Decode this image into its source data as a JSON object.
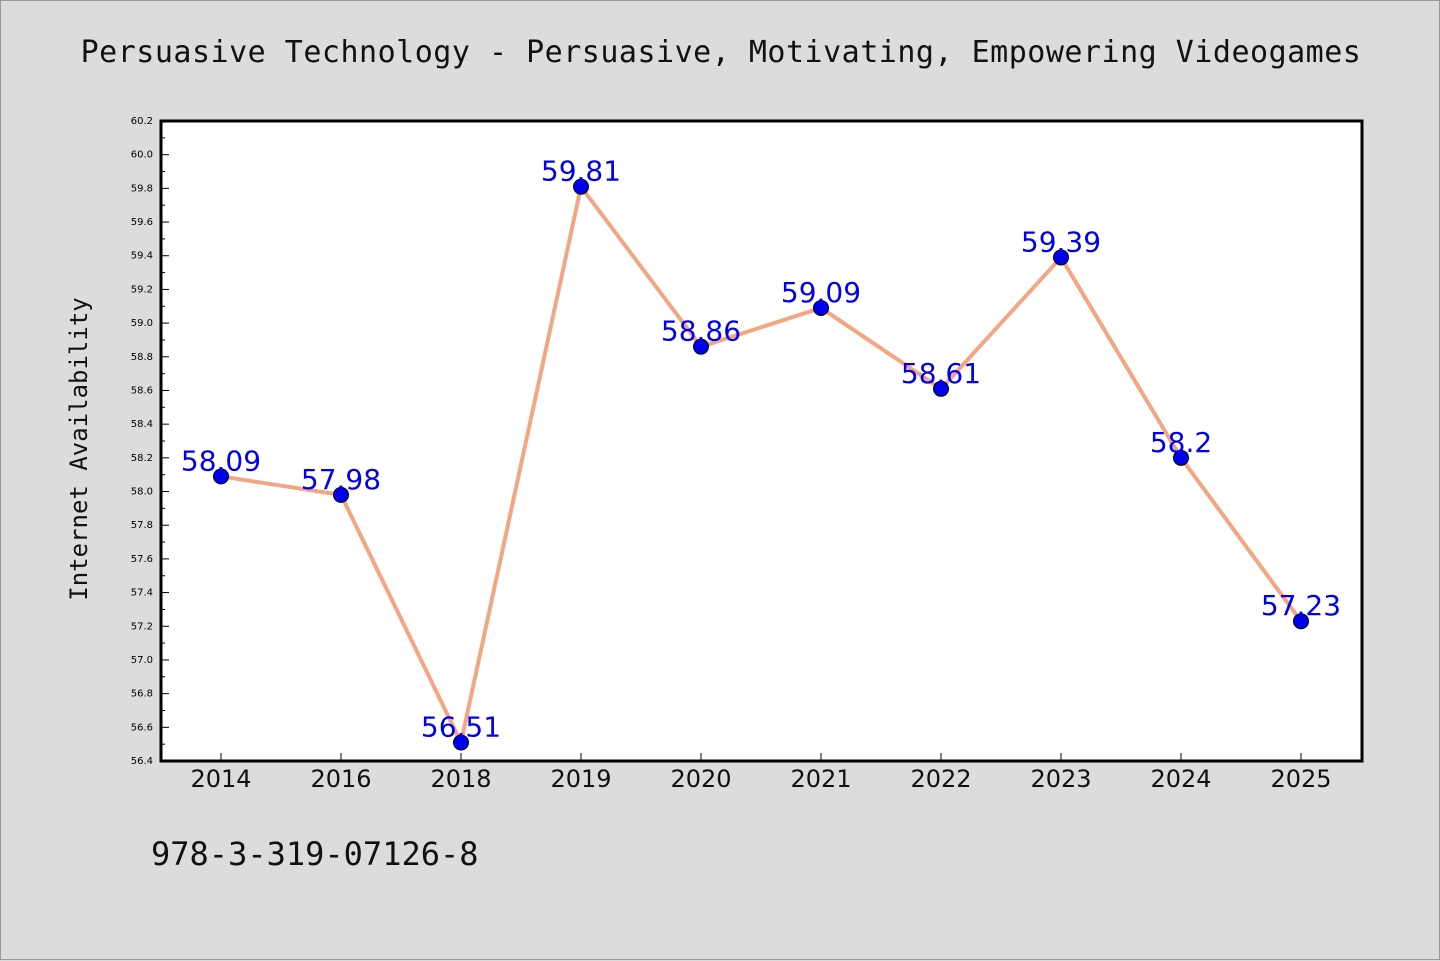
{
  "chart_data": {
    "type": "line",
    "title": "Persuasive Technology - Persuasive, Motivating, Empowering Videogames",
    "xlabel": "",
    "ylabel": "Internet Availability",
    "categories": [
      "2014",
      "2016",
      "2018",
      "2019",
      "2020",
      "2021",
      "2022",
      "2023",
      "2024",
      "2025"
    ],
    "series": [
      {
        "values": [
          58.09,
          57.98,
          56.51,
          59.81,
          58.86,
          59.09,
          58.61,
          59.39,
          58.2,
          57.23
        ],
        "data_labels": [
          "58.09",
          "57.98",
          "56.51",
          "59.81",
          "58.86",
          "59.09",
          "58.61",
          "59.39",
          "58.2",
          "57.23"
        ]
      }
    ],
    "ylim": [
      56.4,
      60.2
    ],
    "yticks": [
      "56.4",
      "56.6",
      "56.8",
      "57.0",
      "57.2",
      "57.4",
      "57.6",
      "57.8",
      "58.0",
      "58.2",
      "58.4",
      "58.6",
      "58.8",
      "59.0",
      "59.2",
      "59.4",
      "59.6",
      "59.8",
      "60.0",
      "60.2"
    ],
    "grid": false,
    "legend": "none",
    "colors": {
      "line": "#f4a582",
      "marker": "#0000ee",
      "data_label": "#0000ee",
      "background": "#dcdcdc",
      "plot_area": "#ffffff"
    }
  },
  "footer": {
    "isbn": "978-3-319-07126-8"
  }
}
